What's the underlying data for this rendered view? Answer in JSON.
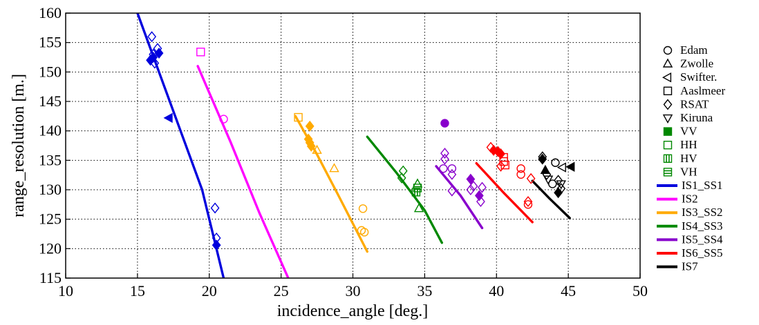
{
  "chart_data": {
    "type": "scatter",
    "xlabel": "incidence_angle [deg.]",
    "ylabel": "range_resolution [m.]",
    "xlim": [
      10,
      50
    ],
    "ylim": [
      115,
      160
    ],
    "xticks": [
      10,
      15,
      20,
      25,
      30,
      35,
      40,
      45,
      50
    ],
    "yticks": [
      115,
      120,
      125,
      130,
      135,
      140,
      145,
      150,
      155,
      160
    ],
    "grid": "dotted",
    "legend_position": "right",
    "marker_legend": [
      {
        "label": "Edam",
        "marker": "circle"
      },
      {
        "label": "Zwolle",
        "marker": "triangle-up"
      },
      {
        "label": "Swifter.",
        "marker": "triangle-left"
      },
      {
        "label": "Aaslmeer",
        "marker": "square"
      },
      {
        "label": "RSAT",
        "marker": "diamond"
      },
      {
        "label": "Kiruna",
        "marker": "triangle-down"
      }
    ],
    "polarization_legend": [
      {
        "label": "VV",
        "fill": "full"
      },
      {
        "label": "HH",
        "fill": "none"
      },
      {
        "label": "HV",
        "fill": "vertical"
      },
      {
        "label": "VH",
        "fill": "horizontal"
      }
    ],
    "series": [
      {
        "name": "IS1_SS1",
        "color": "#0000dd",
        "curve": [
          [
            15.0,
            160.0
          ],
          [
            16.5,
            150.0
          ],
          [
            18.0,
            140.0
          ],
          [
            19.5,
            130.0
          ],
          [
            21.0,
            115.0
          ]
        ],
        "points": [
          {
            "x": 16.0,
            "y": 156.0,
            "m": "diamond",
            "f": "none"
          },
          {
            "x": 16.4,
            "y": 154.0,
            "m": "diamond",
            "f": "none"
          },
          {
            "x": 16.1,
            "y": 153.0,
            "m": "diamond",
            "f": "none"
          },
          {
            "x": 16.2,
            "y": 151.5,
            "m": "diamond",
            "f": "none"
          },
          {
            "x": 15.9,
            "y": 152.0,
            "m": "diamond",
            "f": "full"
          },
          {
            "x": 16.5,
            "y": 153.2,
            "m": "diamond",
            "f": "full"
          },
          {
            "x": 16.1,
            "y": 152.5,
            "m": "diamond",
            "f": "full"
          },
          {
            "x": 17.2,
            "y": 142.2,
            "m": "triangle-left",
            "f": "full"
          },
          {
            "x": 20.4,
            "y": 126.9,
            "m": "diamond",
            "f": "none"
          },
          {
            "x": 20.5,
            "y": 121.8,
            "m": "diamond",
            "f": "none"
          },
          {
            "x": 20.5,
            "y": 120.6,
            "m": "diamond",
            "f": "full"
          }
        ]
      },
      {
        "name": "IS2",
        "color": "#ff00ff",
        "curve": [
          [
            19.2,
            151.0
          ],
          [
            21.5,
            138.0
          ],
          [
            23.5,
            126.0
          ],
          [
            25.5,
            115.0
          ]
        ],
        "points": [
          {
            "x": 19.4,
            "y": 153.4,
            "m": "square",
            "f": "none"
          },
          {
            "x": 21.0,
            "y": 142.0,
            "m": "circle",
            "f": "none"
          }
        ]
      },
      {
        "name": "IS3_SS2",
        "color": "#ffaa00",
        "curve": [
          [
            26.0,
            142.5
          ],
          [
            27.5,
            136.0
          ],
          [
            29.0,
            129.0
          ],
          [
            31.0,
            119.5
          ]
        ],
        "points": [
          {
            "x": 26.2,
            "y": 142.3,
            "m": "square",
            "f": "none"
          },
          {
            "x": 27.0,
            "y": 140.8,
            "m": "diamond",
            "f": "full"
          },
          {
            "x": 26.9,
            "y": 138.6,
            "m": "diamond",
            "f": "full"
          },
          {
            "x": 27.0,
            "y": 138.0,
            "m": "diamond",
            "f": "full"
          },
          {
            "x": 27.1,
            "y": 137.4,
            "m": "diamond",
            "f": "full"
          },
          {
            "x": 27.5,
            "y": 136.7,
            "m": "triangle-up",
            "f": "none"
          },
          {
            "x": 28.7,
            "y": 133.6,
            "m": "triangle-up",
            "f": "none"
          },
          {
            "x": 30.7,
            "y": 126.8,
            "m": "circle",
            "f": "none"
          },
          {
            "x": 30.6,
            "y": 123.1,
            "m": "circle",
            "f": "none"
          },
          {
            "x": 30.8,
            "y": 122.8,
            "m": "circle",
            "f": "none"
          }
        ]
      },
      {
        "name": "IS4_SS3",
        "color": "#008800",
        "curve": [
          [
            31.0,
            139.0
          ],
          [
            33.0,
            133.0
          ],
          [
            35.0,
            126.5
          ],
          [
            36.2,
            121.0
          ]
        ],
        "points": [
          {
            "x": 33.5,
            "y": 133.2,
            "m": "diamond",
            "f": "none"
          },
          {
            "x": 33.4,
            "y": 132.0,
            "m": "diamond",
            "f": "none"
          },
          {
            "x": 34.5,
            "y": 131.0,
            "m": "triangle-up",
            "f": "none"
          },
          {
            "x": 34.5,
            "y": 130.3,
            "m": "square",
            "f": "horizontal"
          },
          {
            "x": 34.4,
            "y": 129.6,
            "m": "square",
            "f": "vertical"
          },
          {
            "x": 34.6,
            "y": 126.8,
            "m": "triangle-up",
            "f": "none"
          }
        ]
      },
      {
        "name": "IS5_SS4",
        "color": "#8800cc",
        "curve": [
          [
            35.8,
            134.0
          ],
          [
            37.5,
            129.0
          ],
          [
            39.0,
            123.5
          ]
        ],
        "points": [
          {
            "x": 36.4,
            "y": 141.3,
            "m": "circle",
            "f": "full"
          },
          {
            "x": 36.4,
            "y": 136.2,
            "m": "diamond",
            "f": "none"
          },
          {
            "x": 36.4,
            "y": 135.2,
            "m": "diamond",
            "f": "none"
          },
          {
            "x": 36.3,
            "y": 133.6,
            "m": "circle",
            "f": "none"
          },
          {
            "x": 36.9,
            "y": 133.6,
            "m": "circle",
            "f": "none"
          },
          {
            "x": 36.9,
            "y": 132.6,
            "m": "diamond",
            "f": "none"
          },
          {
            "x": 36.9,
            "y": 129.8,
            "m": "diamond",
            "f": "none"
          },
          {
            "x": 38.2,
            "y": 131.8,
            "m": "diamond",
            "f": "full"
          },
          {
            "x": 38.4,
            "y": 130.6,
            "m": "diamond",
            "f": "none"
          },
          {
            "x": 38.2,
            "y": 130.0,
            "m": "diamond",
            "f": "none"
          },
          {
            "x": 39.0,
            "y": 130.4,
            "m": "diamond",
            "f": "none"
          },
          {
            "x": 38.8,
            "y": 129.0,
            "m": "diamond",
            "f": "full"
          },
          {
            "x": 38.9,
            "y": 128.0,
            "m": "diamond",
            "f": "none"
          }
        ]
      },
      {
        "name": "IS6_SS5",
        "color": "#ff0000",
        "curve": [
          [
            38.6,
            134.5
          ],
          [
            40.5,
            129.5
          ],
          [
            42.5,
            124.5
          ]
        ],
        "points": [
          {
            "x": 39.6,
            "y": 137.2,
            "m": "diamond",
            "f": "none"
          },
          {
            "x": 39.8,
            "y": 136.7,
            "m": "diamond",
            "f": "full"
          },
          {
            "x": 40.1,
            "y": 136.5,
            "m": "diamond",
            "f": "full"
          },
          {
            "x": 40.3,
            "y": 136.1,
            "m": "diamond",
            "f": "full"
          },
          {
            "x": 40.3,
            "y": 134.0,
            "m": "diamond",
            "f": "none"
          },
          {
            "x": 40.5,
            "y": 135.5,
            "m": "square",
            "f": "none"
          },
          {
            "x": 40.5,
            "y": 134.8,
            "m": "square",
            "f": "none"
          },
          {
            "x": 40.6,
            "y": 134.2,
            "m": "square",
            "f": "none"
          },
          {
            "x": 41.7,
            "y": 133.6,
            "m": "circle",
            "f": "none"
          },
          {
            "x": 41.7,
            "y": 132.6,
            "m": "circle",
            "f": "none"
          },
          {
            "x": 42.4,
            "y": 131.9,
            "m": "diamond",
            "f": "none"
          },
          {
            "x": 42.2,
            "y": 128.0,
            "m": "diamond",
            "f": "none"
          },
          {
            "x": 42.2,
            "y": 127.5,
            "m": "circle",
            "f": "none"
          }
        ]
      },
      {
        "name": "IS7",
        "color": "#000000",
        "curve": [
          [
            42.5,
            131.5
          ],
          [
            43.7,
            128.5
          ],
          [
            45.1,
            125.2
          ]
        ],
        "points": [
          {
            "x": 43.2,
            "y": 135.6,
            "m": "diamond",
            "f": "none"
          },
          {
            "x": 43.2,
            "y": 135.2,
            "m": "diamond",
            "f": "full"
          },
          {
            "x": 43.4,
            "y": 133.3,
            "m": "triangle-up",
            "f": "full"
          },
          {
            "x": 43.5,
            "y": 132.6,
            "m": "diamond",
            "f": "none"
          },
          {
            "x": 43.6,
            "y": 131.8,
            "m": "triangle-down",
            "f": "none"
          },
          {
            "x": 43.9,
            "y": 131.0,
            "m": "circle",
            "f": "none"
          },
          {
            "x": 44.1,
            "y": 134.6,
            "m": "circle",
            "f": "none"
          },
          {
            "x": 44.3,
            "y": 131.6,
            "m": "diamond",
            "f": "none"
          },
          {
            "x": 44.5,
            "y": 131.0,
            "m": "triangle-down",
            "f": "none"
          },
          {
            "x": 44.6,
            "y": 133.8,
            "m": "triangle-left",
            "f": "none"
          },
          {
            "x": 45.2,
            "y": 133.9,
            "m": "triangle-left",
            "f": "full"
          },
          {
            "x": 44.3,
            "y": 129.5,
            "m": "diamond",
            "f": "full"
          },
          {
            "x": 44.5,
            "y": 130.2,
            "m": "diamond",
            "f": "none"
          }
        ]
      }
    ]
  }
}
